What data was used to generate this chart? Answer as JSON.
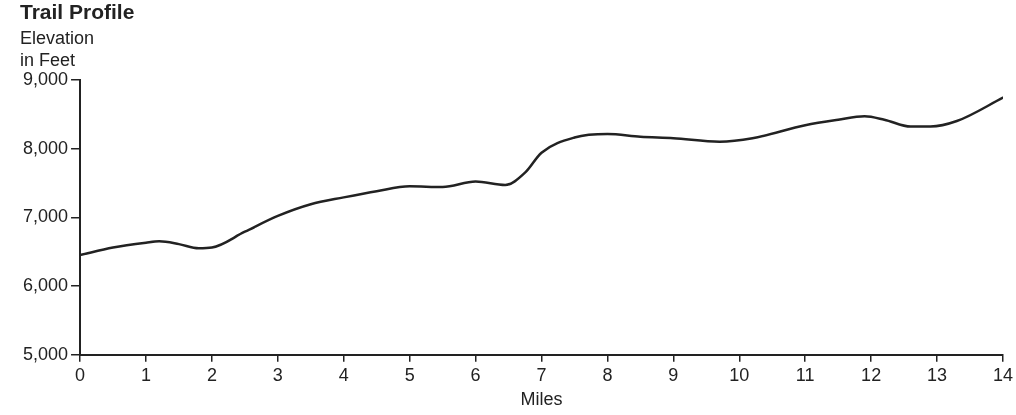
{
  "chart_data": {
    "type": "line",
    "title": "Trail Profile",
    "ylabel": "Elevation in Feet",
    "xlabel": "Miles",
    "x": [
      0,
      0.5,
      1,
      1.2,
      1.5,
      1.8,
      2,
      2.5,
      3,
      3.5,
      4,
      4.5,
      5,
      5.5,
      6,
      6.45,
      6.75,
      7,
      7.5,
      8,
      8.5,
      9,
      9.7,
      10.2,
      11,
      11.5,
      11.9,
      12.2,
      12.6,
      12.9,
      13.3,
      14
    ],
    "series": [
      {
        "color": "#222222",
        "values": [
          6450,
          6560,
          6630,
          6650,
          6610,
          6550,
          6560,
          6790,
          7020,
          7190,
          7290,
          7380,
          7450,
          7440,
          7520,
          7470,
          7650,
          7940,
          8160,
          8210,
          8170,
          8150,
          8100,
          8150,
          8340,
          8420,
          8470,
          8420,
          8320,
          8320,
          8400,
          8740
        ]
      }
    ],
    "xlim": [
      0,
      14
    ],
    "xticks": [
      0,
      1,
      2,
      3,
      4,
      5,
      6,
      7,
      8,
      9,
      10,
      11,
      12,
      13,
      14
    ],
    "ylim": [
      5000,
      9000
    ],
    "yticks": [
      {
        "value": 5000,
        "label": "5,000"
      },
      {
        "value": 6000,
        "label": "6,000"
      },
      {
        "value": 7000,
        "label": "7,000"
      },
      {
        "value": 8000,
        "label": "8,000"
      },
      {
        "value": 9000,
        "label": "9,000"
      }
    ],
    "grid": false,
    "legend": false,
    "marker": "none",
    "line_style": "solid"
  }
}
